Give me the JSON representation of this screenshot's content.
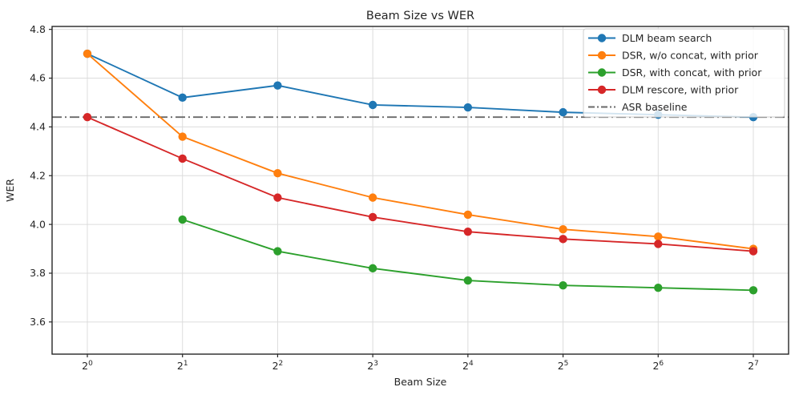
{
  "figure": {
    "background": "#ffffff"
  },
  "chart_data": {
    "type": "line",
    "title": "Beam Size vs WER",
    "xlabel": "Beam Size",
    "ylabel": "WER",
    "x_tick_base": "2",
    "x_tick_exponents": [
      "0",
      "1",
      "2",
      "3",
      "4",
      "5",
      "6",
      "7"
    ],
    "y_tick_values": [
      4.8,
      4.6,
      4.4,
      4.2,
      4.0,
      3.8,
      3.6
    ],
    "y_tick_labels": [
      "4.8",
      "4.6",
      "4.4",
      "4.2",
      "4.0",
      "3.8",
      "3.6"
    ],
    "ylim": [
      3.468,
      4.812
    ],
    "grid": true,
    "grid_color": "#dcdcdc",
    "spine_color": "#262626",
    "legend_position": "upper right",
    "series": [
      {
        "name": "DLM beam search",
        "color": "#1f77b4",
        "marker": "circle",
        "values": [
          4.7,
          4.52,
          4.57,
          4.49,
          4.48,
          4.46,
          4.45,
          4.44
        ]
      },
      {
        "name": "DSR, w/o concat, with prior",
        "color": "#ff7f0e",
        "marker": "circle",
        "values": [
          4.7,
          4.36,
          4.21,
          4.11,
          4.04,
          3.98,
          3.95,
          3.9
        ]
      },
      {
        "name": "DSR, with concat, with prior",
        "color": "#2ca02c",
        "marker": "circle",
        "values": [
          null,
          4.02,
          3.89,
          3.82,
          3.77,
          3.75,
          3.74,
          3.73
        ]
      },
      {
        "name": "DLM rescore, with prior",
        "color": "#d62728",
        "marker": "circle",
        "values": [
          4.44,
          4.27,
          4.11,
          4.03,
          3.97,
          3.94,
          3.92,
          3.89
        ]
      }
    ],
    "baseline": {
      "name": "ASR baseline",
      "value": 4.44,
      "color": "#696969",
      "style": "dashdot"
    },
    "legend_entries": [
      "DLM beam search",
      "DSR, w/o concat, with prior",
      "DSR, with concat, with prior",
      "DLM rescore, with prior",
      "ASR baseline"
    ]
  }
}
